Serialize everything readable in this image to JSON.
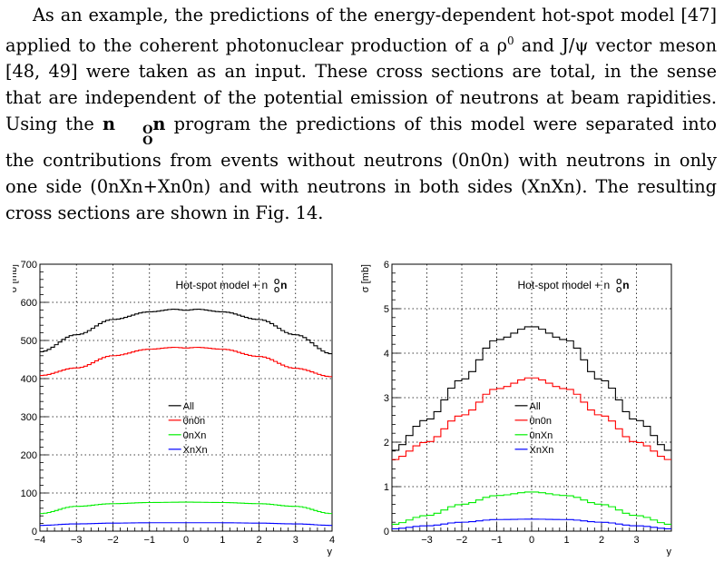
{
  "paragraph": {
    "text_part1": "As an example, the predictions of the energy-dependent hot-spot model [47] applied to the coherent photonuclear production of a ρ",
    "rho_sup": "0",
    "text_part2": " and J/ψ vector meson [48, 49] were taken as an input. These cross sections are total, in the sense that are independent of the potential emission of neutrons at beam rapidities. Using the ",
    "program_name": "n",
    "program_name_sup": "O",
    "program_name_sub": "O",
    "program_name_end": "n",
    "text_part3": " program the predictions of this model were separated into the contributions from events without neutrons (0n0n) with neutrons in only one side (0nXn+Xn0n) and with neutrons in both sides (XnXn). The resulting cross sections are shown in Fig. 14."
  },
  "chart_data": [
    {
      "type": "line",
      "title": "Hot-spot model + n",
      "title_sup": "O",
      "title_sub": "O",
      "title_end": "n",
      "xlabel": "y",
      "ylabel": "σ [mb]",
      "xlim": [
        -4,
        4
      ],
      "ylim": [
        0,
        700
      ],
      "xticks": [
        -4,
        -3,
        -2,
        -1,
        0,
        1,
        2,
        3,
        4
      ],
      "yticks": [
        0,
        100,
        200,
        300,
        400,
        500,
        600,
        700
      ],
      "grid": true,
      "step": true,
      "bins": 80,
      "legend_position": "center",
      "series": [
        {
          "name": "All",
          "color": "#000000",
          "x": [
            -4,
            -3,
            -2,
            -1,
            -0.3,
            0,
            0.3,
            1,
            2,
            3,
            4
          ],
          "values": [
            470,
            515,
            555,
            575,
            582,
            579,
            582,
            575,
            555,
            515,
            465
          ]
        },
        {
          "name": "0n0n",
          "color": "#ff0000",
          "x": [
            -4,
            -3,
            -2,
            -1,
            -0.3,
            0,
            0.3,
            1,
            2,
            3,
            4
          ],
          "values": [
            408,
            428,
            460,
            477,
            482,
            480,
            482,
            477,
            458,
            427,
            405
          ]
        },
        {
          "name": "0nXn",
          "color": "#00ee00",
          "x": [
            -4,
            -3,
            -2,
            -1,
            0,
            1,
            2,
            3,
            4
          ],
          "values": [
            46,
            65,
            72,
            75,
            76,
            75,
            72,
            65,
            46
          ]
        },
        {
          "name": "XnXn",
          "color": "#0000ff",
          "x": [
            -4,
            -3,
            -2,
            -1,
            0,
            1,
            2,
            3,
            4
          ],
          "values": [
            15,
            19,
            21,
            22,
            22,
            22,
            21,
            19,
            15
          ]
        }
      ]
    },
    {
      "type": "line",
      "title": "Hot-spot model + n",
      "title_sup": "O",
      "title_sub": "O",
      "title_end": "n",
      "xlabel": "y",
      "ylabel": "σ [mb]",
      "xlim": [
        -4,
        4
      ],
      "ylim": [
        0,
        6
      ],
      "xticks": [
        -3,
        -2,
        -1,
        0,
        1,
        2,
        3
      ],
      "yticks": [
        0,
        1,
        2,
        3,
        4,
        5,
        6
      ],
      "grid": true,
      "step": true,
      "bins": 40,
      "legend_position": "center",
      "series": [
        {
          "name": "All",
          "color": "#000000",
          "x": [
            -4,
            -3,
            -2,
            -1,
            0,
            1,
            2,
            3,
            4
          ],
          "values": [
            1.8,
            2.5,
            3.4,
            4.3,
            4.6,
            4.3,
            3.4,
            2.5,
            1.8
          ]
        },
        {
          "name": "0n0n",
          "color": "#ff0000",
          "x": [
            -4,
            -3,
            -2,
            -1,
            0,
            1,
            2,
            3,
            4
          ],
          "values": [
            1.6,
            2.0,
            2.6,
            3.2,
            3.45,
            3.2,
            2.6,
            2.0,
            1.6
          ]
        },
        {
          "name": "0nXn",
          "color": "#00ee00",
          "x": [
            -4,
            -3,
            -2,
            -1,
            0,
            1,
            2,
            3,
            4
          ],
          "values": [
            0.15,
            0.35,
            0.6,
            0.8,
            0.88,
            0.8,
            0.6,
            0.35,
            0.15
          ]
        },
        {
          "name": "XnXn",
          "color": "#0000ff",
          "x": [
            -4,
            -3,
            -2,
            -1,
            0,
            1,
            2,
            3,
            4
          ],
          "values": [
            0.05,
            0.12,
            0.2,
            0.26,
            0.27,
            0.26,
            0.2,
            0.12,
            0.05
          ]
        }
      ]
    }
  ]
}
